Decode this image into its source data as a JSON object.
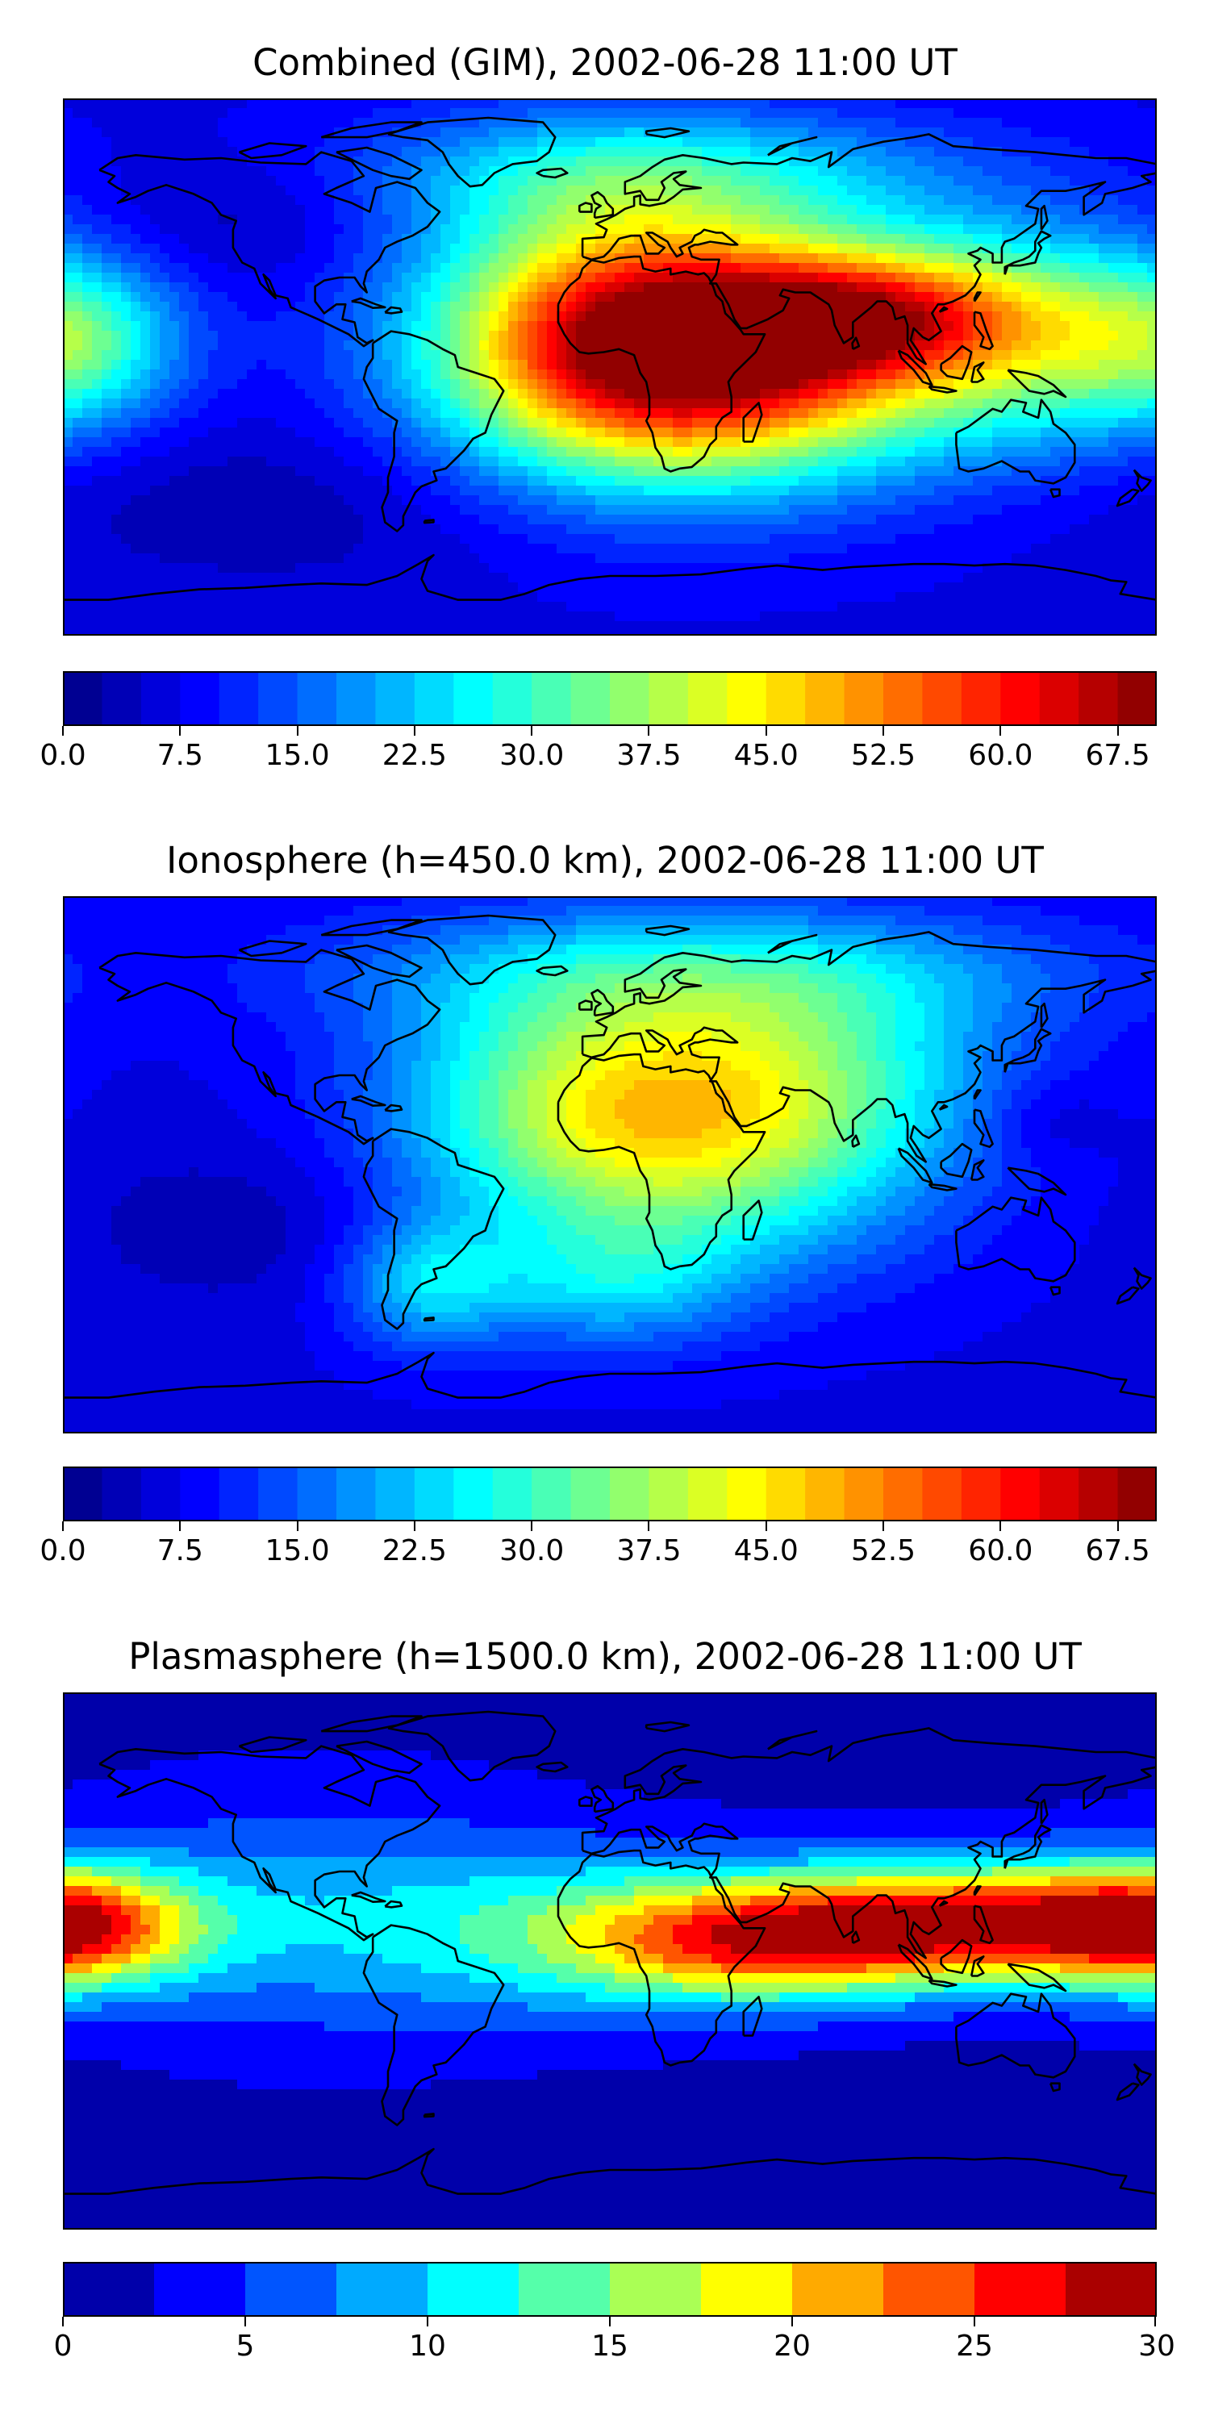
{
  "panels": [
    {
      "id": "combined",
      "title": "Combined (GIM), 2002-06-28 11:00 UT",
      "colorbar": {
        "min": 0,
        "max": 70,
        "levels": 28,
        "ticks": [
          0,
          7.5,
          15,
          22.5,
          30,
          37.5,
          45,
          52.5,
          60,
          67.5
        ],
        "tick_labels": [
          "0.0",
          "7.5",
          "15.0",
          "22.5",
          "30.0",
          "37.5",
          "45.0",
          "52.5",
          "60.0",
          "67.5"
        ]
      },
      "field": {
        "base": 7,
        "blobs": [
          {
            "lon": 32,
            "lat": 4,
            "amp": 60,
            "slon": 55,
            "slat": 28
          },
          {
            "lon": 85,
            "lat": 18,
            "amp": 28,
            "slon": 38,
            "slat": 15
          },
          {
            "lon": -5,
            "lat": 20,
            "amp": 18,
            "slon": 40,
            "slat": 35
          },
          {
            "lon": 140,
            "lat": 10,
            "amp": 20,
            "slon": 35,
            "slat": 25
          },
          {
            "lon": -175,
            "lat": 8,
            "amp": 20,
            "slon": 25,
            "slat": 20
          },
          {
            "lon": 20,
            "lat": 65,
            "amp": 15,
            "slon": 70,
            "slat": 15
          },
          {
            "lon": -120,
            "lat": 50,
            "amp": -4,
            "slon": 30,
            "slat": 15
          },
          {
            "lon": -110,
            "lat": -45,
            "amp": -4,
            "slon": 60,
            "slat": 20
          }
        ]
      }
    },
    {
      "id": "ionosphere",
      "title": "Ionosphere  (h=450.0 km), 2002-06-28 11:00 UT",
      "colorbar": {
        "min": 0,
        "max": 70,
        "levels": 28,
        "ticks": [
          0,
          7.5,
          15,
          22.5,
          30,
          37.5,
          45,
          52.5,
          60,
          67.5
        ],
        "tick_labels": [
          "0.0",
          "7.5",
          "15.0",
          "22.5",
          "30.0",
          "37.5",
          "45.0",
          "52.5",
          "60.0",
          "67.5"
        ]
      },
      "field": {
        "base": 7,
        "blobs": [
          {
            "lon": 25,
            "lat": 10,
            "amp": 32,
            "slon": 55,
            "slat": 30
          },
          {
            "lon": -20,
            "lat": 30,
            "amp": 10,
            "slon": 40,
            "slat": 30
          },
          {
            "lon": 60,
            "lat": 40,
            "amp": 12,
            "slon": 50,
            "slat": 25
          },
          {
            "lon": 30,
            "lat": 65,
            "amp": 12,
            "slon": 90,
            "slat": 15
          },
          {
            "lon": -60,
            "lat": -40,
            "amp": 15,
            "slon": 20,
            "slat": 15
          },
          {
            "lon": 0,
            "lat": -40,
            "amp": 12,
            "slon": 30,
            "slat": 15
          },
          {
            "lon": 145,
            "lat": 15,
            "amp": -4,
            "slon": 15,
            "slat": 10
          },
          {
            "lon": -120,
            "lat": -20,
            "amp": -4,
            "slon": 40,
            "slat": 20
          }
        ]
      }
    },
    {
      "id": "plasmasphere",
      "title": "Plasmasphere (h=1500.0 km), 2002-06-28 11:00 UT",
      "colorbar": {
        "min": 0,
        "max": 30,
        "levels": 12,
        "ticks": [
          0,
          5,
          10,
          15,
          20,
          25,
          30
        ],
        "tick_labels": [
          "0",
          "5",
          "10",
          "15",
          "20",
          "25",
          "30"
        ]
      },
      "field": {
        "base": 1.5,
        "blobs": [
          {
            "lon": 40,
            "lat": 7,
            "amp": 15,
            "slon": 40,
            "slat": 14
          },
          {
            "lon": 140,
            "lat": 14,
            "amp": 17,
            "slon": 45,
            "slat": 14
          },
          {
            "lon": 90,
            "lat": 10,
            "amp": 12,
            "slon": 35,
            "slat": 14
          },
          {
            "lon": -180,
            "lat": 10,
            "amp": 17,
            "slon": 30,
            "slat": 14
          },
          {
            "lon": 0,
            "lat": 10,
            "amp": 8,
            "slon": 60,
            "slat": 20
          },
          {
            "lon": -100,
            "lat": 15,
            "amp": 6,
            "slon": 60,
            "slat": 30
          }
        ]
      }
    }
  ],
  "colormap": "jet",
  "map": {
    "projection": "PlateCarree",
    "lon_range": [
      -180,
      180
    ],
    "lat_range": [
      -90,
      90
    ],
    "coastlines": true
  }
}
